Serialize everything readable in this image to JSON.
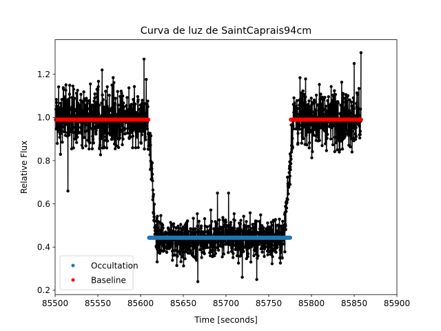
{
  "chart_data": {
    "type": "scatter",
    "title": "Curva de luz de SaintCaprais94cm",
    "xlabel": "Time [seconds]",
    "ylabel": "Relative Flux",
    "xlim": [
      85500,
      85900
    ],
    "ylim": [
      0.18,
      1.36
    ],
    "xticks": [
      85500,
      85550,
      85600,
      85650,
      85700,
      85750,
      85800,
      85850,
      85900
    ],
    "yticks": [
      0.2,
      0.4,
      0.6,
      0.8,
      1.0,
      1.2
    ],
    "xtick_labels": [
      "85500",
      "85550",
      "85600",
      "85650",
      "85700",
      "85750",
      "85800",
      "85850",
      "85900"
    ],
    "ytick_labels": [
      "0.2",
      "0.4",
      "0.6",
      "0.8",
      "1.0",
      "1.2"
    ],
    "grid": false,
    "legend_position": "lower-left",
    "series": [
      {
        "name": "",
        "color": "#000000",
        "style": "line-with-dots",
        "description_segments": [
          {
            "x_start": 85501,
            "x_end": 85609,
            "mean": 1.0,
            "noise": 0.09
          },
          {
            "x_start": 85609,
            "x_end": 85618,
            "mean_start": 0.95,
            "mean_end": 0.45,
            "noise": 0.06
          },
          {
            "x_start": 85618,
            "x_end": 85768,
            "mean": 0.44,
            "noise": 0.06
          },
          {
            "x_start": 85768,
            "x_end": 85778,
            "mean_start": 0.45,
            "mean_end": 0.95,
            "noise": 0.06
          },
          {
            "x_start": 85778,
            "x_end": 85858,
            "mean": 1.0,
            "noise": 0.09
          }
        ],
        "notable_points": [
          {
            "x": 85604,
            "y": 1.27
          },
          {
            "x": 85555,
            "y": 1.22
          },
          {
            "x": 85858,
            "y": 1.3
          },
          {
            "x": 85850,
            "y": 1.25
          },
          {
            "x": 85515,
            "y": 0.66
          },
          {
            "x": 85775,
            "y": 0.69
          },
          {
            "x": 85690,
            "y": 0.65
          },
          {
            "x": 85703,
            "y": 0.65
          },
          {
            "x": 85667,
            "y": 0.24
          },
          {
            "x": 85719,
            "y": 0.26
          },
          {
            "x": 85736,
            "y": 0.25
          }
        ]
      },
      {
        "name": "Occultation",
        "color": "#1f77b4",
        "style": "dots",
        "x_start": 85610,
        "x_end": 85775,
        "y": 0.443
      },
      {
        "name": "Baseline",
        "color": "#ff0000",
        "style": "dots",
        "segments": [
          {
            "x_start": 85501,
            "x_end": 85609,
            "y": 0.99
          },
          {
            "x_start": 85776,
            "x_end": 85858,
            "y": 0.99
          }
        ]
      }
    ]
  }
}
